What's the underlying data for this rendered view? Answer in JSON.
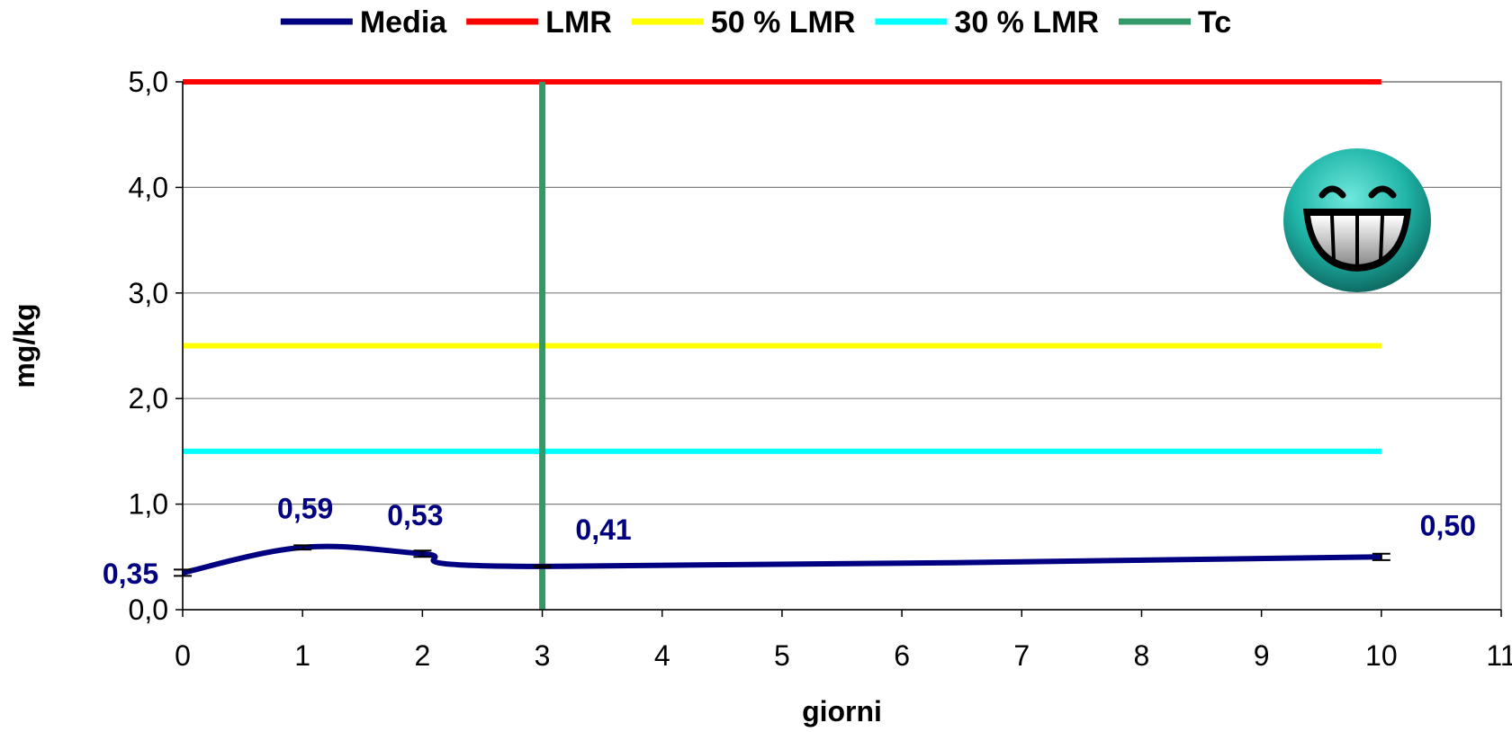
{
  "chart_data": {
    "type": "line",
    "xlabel": "giorni",
    "ylabel": "mg/kg",
    "xlim": [
      0,
      11
    ],
    "ylim": [
      0,
      5
    ],
    "x_ticks": [
      "0",
      "1",
      "2",
      "3",
      "4",
      "5",
      "6",
      "7",
      "8",
      "9",
      "10",
      "11"
    ],
    "y_ticks": [
      "0,0",
      "1,0",
      "2,0",
      "3,0",
      "4,0",
      "5,0"
    ],
    "y_tick_values": [
      0,
      1,
      2,
      3,
      4,
      5
    ],
    "grid": "horizontal",
    "legend_position": "top",
    "series": [
      {
        "name": "Media",
        "color": "#000080",
        "kind": "smooth-line",
        "x": [
          0,
          1,
          2,
          3,
          10
        ],
        "y": [
          0.35,
          0.59,
          0.53,
          0.41,
          0.5
        ],
        "error": [
          0.03,
          0.02,
          0.03,
          0.01,
          0.03
        ],
        "data_labels": [
          "0,35",
          "0,59",
          "0,53",
          "0,41",
          "0,50"
        ]
      },
      {
        "name": "LMR",
        "color": "#ff0000",
        "kind": "hline",
        "y": 5.0,
        "x_range": [
          0,
          10
        ]
      },
      {
        "name": "50 % LMR",
        "color": "#ffff00",
        "kind": "hline",
        "y": 2.5,
        "x_range": [
          0,
          10
        ]
      },
      {
        "name": "30 % LMR",
        "color": "#00ffff",
        "kind": "hline",
        "y": 1.5,
        "x_range": [
          0,
          10
        ]
      },
      {
        "name": "Tc",
        "color": "#339966",
        "kind": "vline",
        "x": 3,
        "y_range": [
          0,
          5
        ]
      }
    ],
    "decoration": {
      "icon": "grinning-smiley-icon",
      "color": "#1fb5a8"
    }
  }
}
